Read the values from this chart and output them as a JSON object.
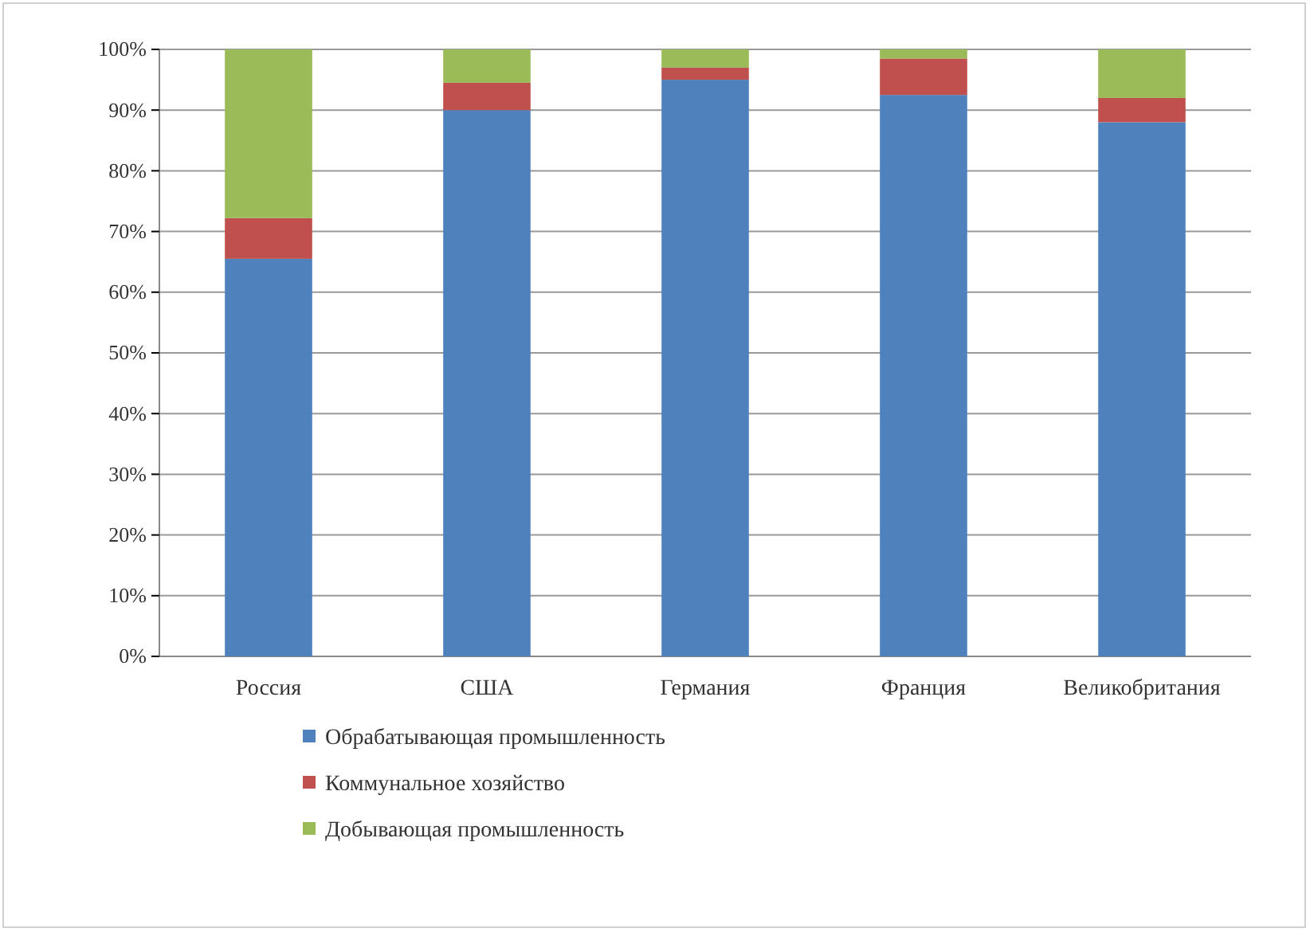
{
  "chart_data": {
    "type": "bar",
    "stacked": true,
    "categories": [
      "Россия",
      "США",
      "Германия",
      "Франция",
      "Великобритания"
    ],
    "series": [
      {
        "name": "Обрабатывающая промышленность",
        "color": "#4f81bd",
        "values": [
          65.5,
          90,
          95,
          92.5,
          88
        ]
      },
      {
        "name": "Коммунальное хозяйство",
        "color": "#c0504d",
        "values": [
          6.7,
          4.5,
          2,
          6,
          4
        ]
      },
      {
        "name": "Добывающая промышленность",
        "color": "#9bbb59",
        "values": [
          27.8,
          5.5,
          3,
          1.5,
          8
        ]
      }
    ],
    "ylim": [
      0,
      100
    ],
    "yticks": [
      {
        "value": 0,
        "label": "0%"
      },
      {
        "value": 10,
        "label": "10%"
      },
      {
        "value": 20,
        "label": "20%"
      },
      {
        "value": 30,
        "label": "30%"
      },
      {
        "value": 40,
        "label": "40%"
      },
      {
        "value": 50,
        "label": "50%"
      },
      {
        "value": 60,
        "label": "60%"
      },
      {
        "value": 70,
        "label": "70%"
      },
      {
        "value": 80,
        "label": "80%"
      },
      {
        "value": 90,
        "label": "90%"
      },
      {
        "value": 100,
        "label": "100%"
      }
    ],
    "grid": "y",
    "legend": "bottom"
  }
}
